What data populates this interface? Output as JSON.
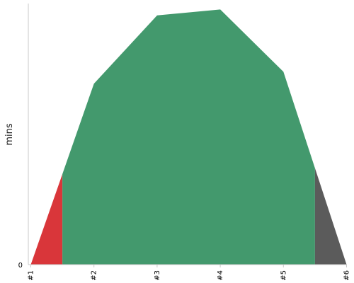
{
  "chart_data": {
    "type": "area",
    "x": [
      "#1",
      "#2",
      "#3",
      "#4",
      "#5",
      "#6"
    ],
    "values": [
      0,
      61,
      84,
      86,
      65,
      0
    ],
    "ylabel": "mins",
    "xlabel": "",
    "ylim": [
      0,
      88
    ],
    "y_ticks": [
      "0"
    ],
    "grid": false,
    "segments": [
      {
        "from": "#1",
        "to": "#1.5",
        "color": "#d9363a"
      },
      {
        "from": "#1.5",
        "to": "#5.5",
        "color": "#43996d"
      },
      {
        "from": "#5.5",
        "to": "#6",
        "color": "#5b5b5b"
      }
    ]
  }
}
